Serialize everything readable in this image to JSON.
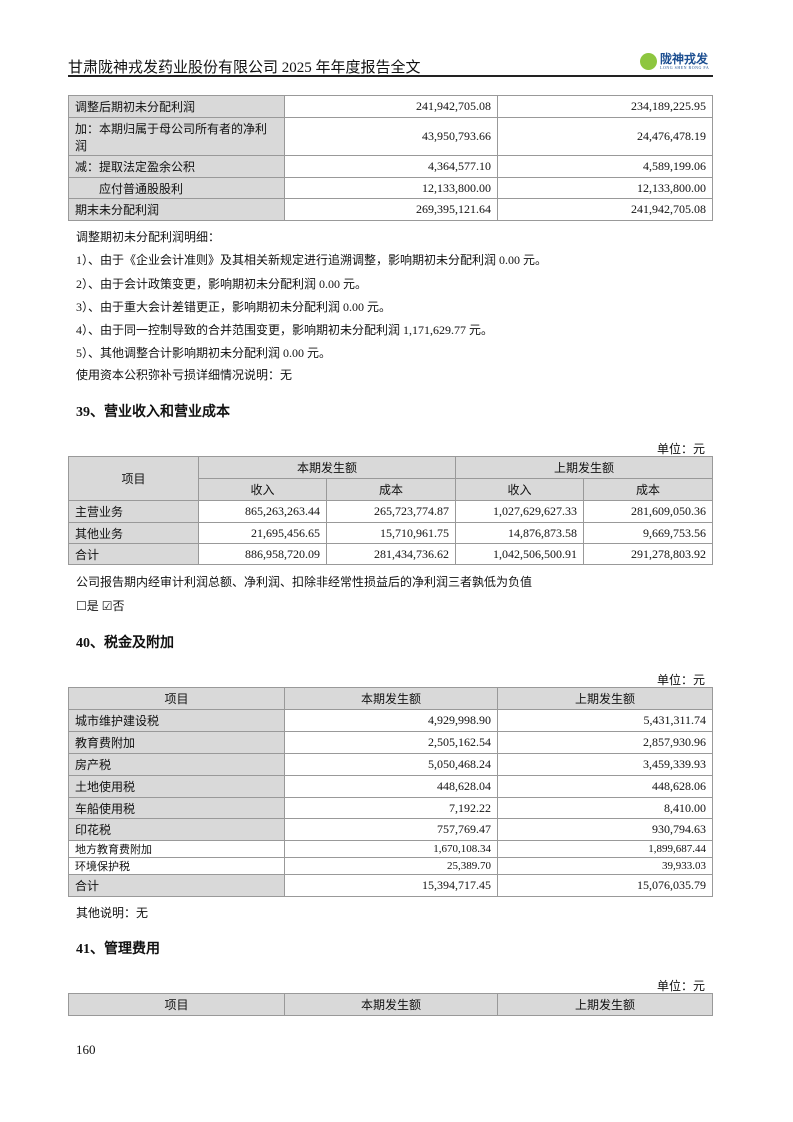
{
  "header": {
    "title": "甘肃陇神戎发药业股份有限公司 2025 年年度报告全文",
    "logo_text": "陇神戎发",
    "logo_sub": "LONG SHEN RONG FA"
  },
  "table1": {
    "rows": [
      {
        "label": "调整后期初未分配利润",
        "current": "241,942,705.08",
        "prior": "234,189,225.95"
      },
      {
        "label": "加：本期归属于母公司所有者的净利润",
        "current": "43,950,793.66",
        "prior": "24,476,478.19"
      },
      {
        "label": "减：提取法定盈余公积",
        "current": "4,364,577.10",
        "prior": "4,589,199.06"
      },
      {
        "label": "应付普通股股利",
        "current": "12,133,800.00",
        "prior": "12,133,800.00"
      },
      {
        "label": "期末未分配利润",
        "current": "269,395,121.64",
        "prior": "241,942,705.08"
      }
    ]
  },
  "notes": [
    "调整期初未分配利润明细：",
    "1）、由于《企业会计准则》及其相关新规定进行追溯调整，影响期初未分配利润 0.00 元。",
    "2）、由于会计政策变更，影响期初未分配利润 0.00 元。",
    "3）、由于重大会计差错更正，影响期初未分配利润 0.00 元。",
    "4）、由于同一控制导致的合并范围变更，影响期初未分配利润 1,171,629.77 元。",
    "5）、其他调整合计影响期初未分配利润 0.00 元。",
    "使用资本公积弥补亏损详细情况说明：无"
  ],
  "section39": {
    "heading": "39、营业收入和营业成本",
    "unit": "单位：元",
    "h_item": "项目",
    "h_current": "本期发生额",
    "h_prior": "上期发生额",
    "h_rev": "收入",
    "h_cost": "成本",
    "rows": [
      {
        "label": "主营业务",
        "cur_rev": "865,263,263.44",
        "cur_cost": "265,723,774.87",
        "pri_rev": "1,027,629,627.33",
        "pri_cost": "281,609,050.36"
      },
      {
        "label": "其他业务",
        "cur_rev": "21,695,456.65",
        "cur_cost": "15,710,961.75",
        "pri_rev": "14,876,873.58",
        "pri_cost": "9,669,753.56"
      },
      {
        "label": "合计",
        "cur_rev": "886,958,720.09",
        "cur_cost": "281,434,736.62",
        "pri_rev": "1,042,506,500.91",
        "pri_cost": "291,278,803.92"
      }
    ],
    "question": "公司报告期内经审计利润总额、净利润、扣除非经常性损益后的净利润三者孰低为负值",
    "opt_yes": "☐是",
    "opt_no": "☑否",
    "selected": "否"
  },
  "section40": {
    "heading": "40、税金及附加",
    "unit": "单位：元",
    "h_item": "项目",
    "h_current": "本期发生额",
    "h_prior": "上期发生额",
    "rows": [
      {
        "label": "城市维护建设税",
        "current": "4,929,998.90",
        "prior": "5,431,311.74"
      },
      {
        "label": "教育费附加",
        "current": "2,505,162.54",
        "prior": "2,857,930.96"
      },
      {
        "label": "房产税",
        "current": "5,050,468.24",
        "prior": "3,459,339.93"
      },
      {
        "label": "土地使用税",
        "current": "448,628.04",
        "prior": "448,628.06"
      },
      {
        "label": "车船使用税",
        "current": "7,192.22",
        "prior": "8,410.00"
      },
      {
        "label": "印花税",
        "current": "757,769.47",
        "prior": "930,794.63"
      },
      {
        "label": "地方教育费附加",
        "current": "1,670,108.34",
        "prior": "1,899,687.44"
      },
      {
        "label": "环境保护税",
        "current": "25,389.70",
        "prior": "39,933.03"
      },
      {
        "label": "合计",
        "current": "15,394,717.45",
        "prior": "15,076,035.79"
      }
    ],
    "other_note": "其他说明：无"
  },
  "section41": {
    "heading": "41、管理费用",
    "unit": "单位：元",
    "h_item": "项目",
    "h_current": "本期发生额",
    "h_prior": "上期发生额"
  },
  "footer": {
    "page_number": "160"
  }
}
